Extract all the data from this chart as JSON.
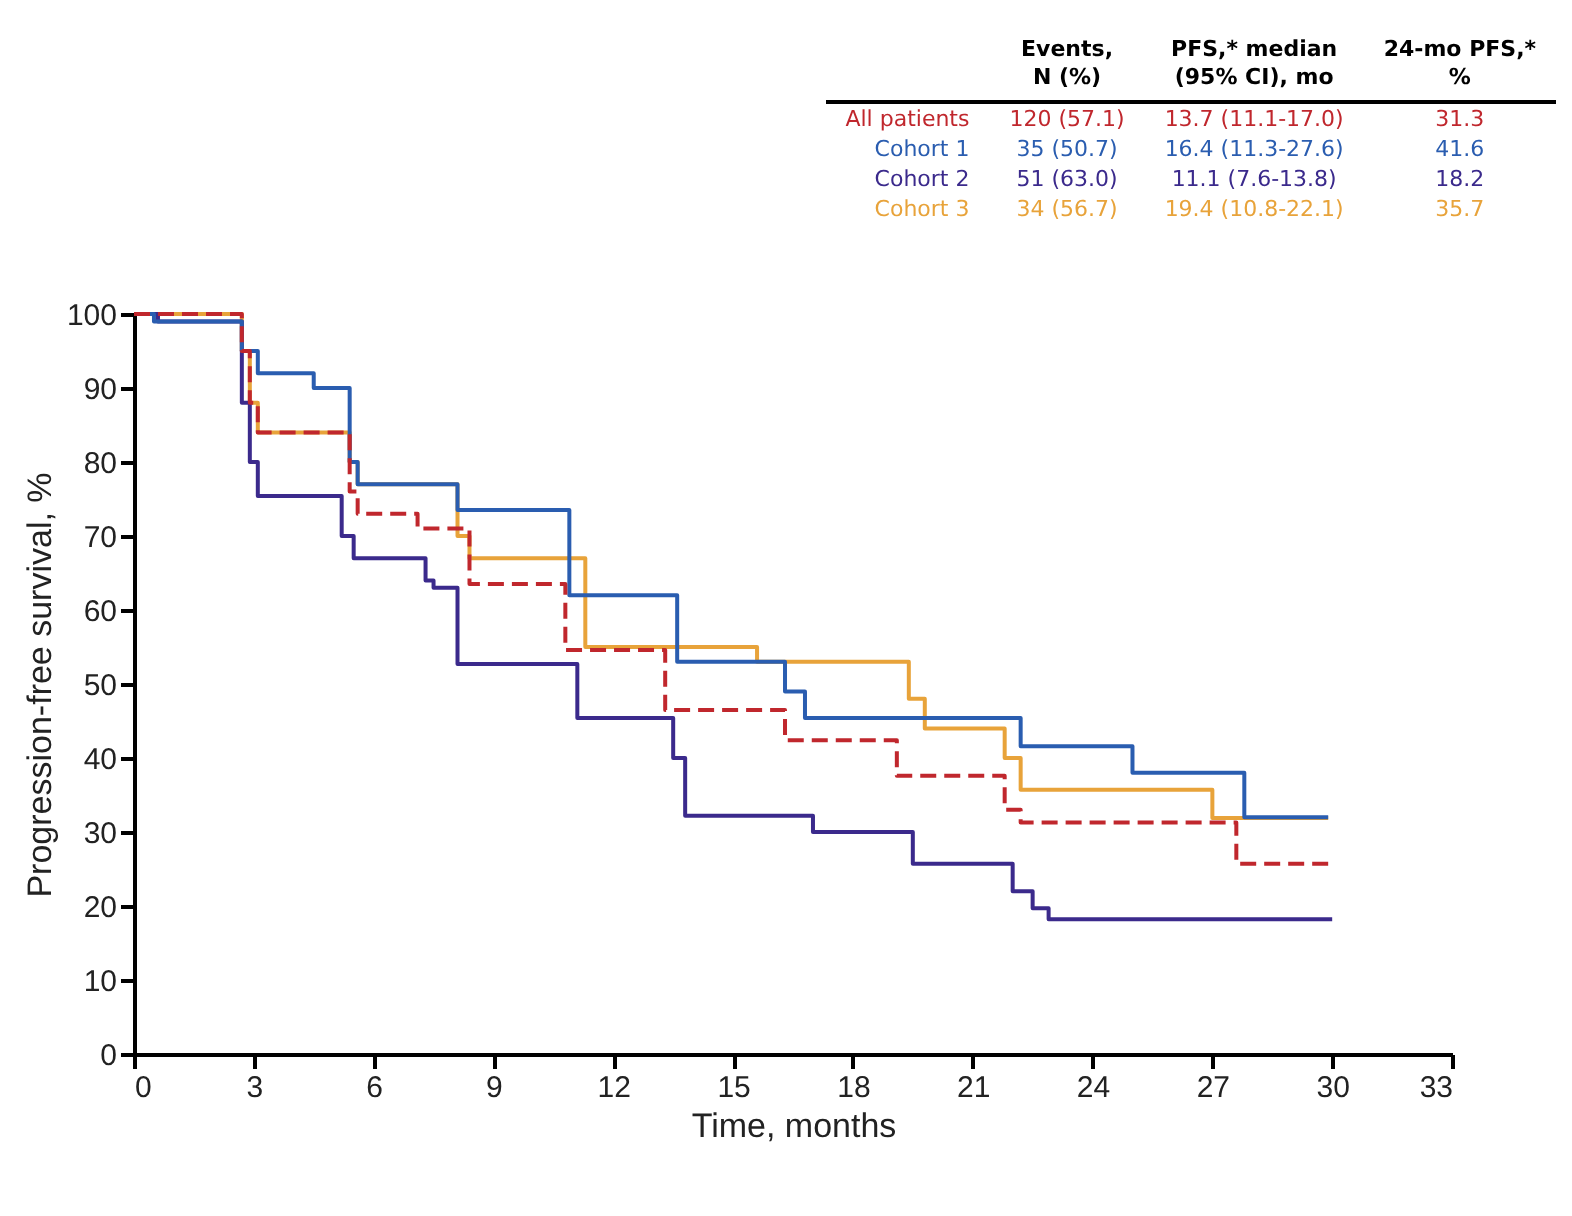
{
  "chart_data": {
    "type": "step",
    "xlabel": "Time, months",
    "ylabel": "Progression-free survival, %",
    "xlim": [
      0,
      33
    ],
    "xticks": [
      0,
      3,
      6,
      9,
      12,
      15,
      18,
      21,
      24,
      27,
      30,
      33
    ],
    "ylim": [
      0,
      100
    ],
    "yticks": [
      0,
      10,
      20,
      30,
      40,
      50,
      60,
      70,
      80,
      90,
      100
    ],
    "grid": false,
    "legend": "top right",
    "annotations": [
      "Events,\nN (%)",
      "PFS,* median\n(95% CI), mo",
      "24-mo PFS,*\n%",
      "120 (57.1)",
      "13.7 (11.1-17.0)",
      "31.3",
      "35 (50.7)",
      "16.4 (11.3-27.6)",
      "41.6",
      "51 (63.0)",
      "11.1 (7.6-13.8)",
      "18.2",
      "34 (56.7)",
      "19.4 (10.8-22.1)",
      "35.7"
    ],
    "series": [
      {
        "name": "All patients",
        "color": "#c0272d",
        "line_style": "dashed",
        "x": [
          0,
          2.7,
          2.9,
          3.1,
          5.4,
          5.6,
          7.1,
          8.4,
          10.8,
          13.3,
          16.3,
          19.1,
          21.8,
          22.2,
          27.6,
          30
        ],
        "values": [
          100,
          95,
          88,
          84,
          76,
          73,
          71,
          63.5,
          54.6,
          46.5,
          42.4,
          37.6,
          33,
          31.3,
          25.7,
          25.7
        ]
      },
      {
        "name": "Cohort 1",
        "color": "#2a5db0",
        "line_style": "solid",
        "x": [
          0,
          0.5,
          2.7,
          3.1,
          4.5,
          5.4,
          5.6,
          8.1,
          10.9,
          13.6,
          16.3,
          16.8,
          22.2,
          25.0,
          27.8,
          29.9
        ],
        "values": [
          100,
          99,
          95,
          92,
          90,
          80,
          77,
          73.5,
          62,
          53,
          49,
          45.4,
          41.6,
          38,
          32,
          32
        ]
      },
      {
        "name": "Cohort 2",
        "color": "#3b2a8c",
        "line_style": "solid",
        "x": [
          0,
          0.6,
          2.7,
          2.9,
          3.1,
          5.2,
          5.5,
          7.3,
          7.5,
          8.1,
          11.1,
          13.5,
          13.8,
          17.0,
          19.5,
          22.0,
          22.5,
          22.9,
          30
        ],
        "values": [
          100,
          99,
          88,
          80,
          75.4,
          70,
          67,
          64,
          63,
          52.7,
          45.4,
          40,
          32.2,
          30,
          25.7,
          22,
          19.7,
          18.2,
          18.2
        ]
      },
      {
        "name": "Cohort 3",
        "color": "#e8a33a",
        "line_style": "solid",
        "x": [
          0,
          2.7,
          2.9,
          3.1,
          5.4,
          5.6,
          8.1,
          8.4,
          11.3,
          15.6,
          19.4,
          19.8,
          21.8,
          22.2,
          27.0,
          29.9
        ],
        "values": [
          100,
          95,
          88,
          84,
          80,
          77,
          70,
          67,
          55,
          53,
          48,
          44,
          40,
          35.7,
          31.9,
          31.9
        ]
      }
    ]
  }
}
